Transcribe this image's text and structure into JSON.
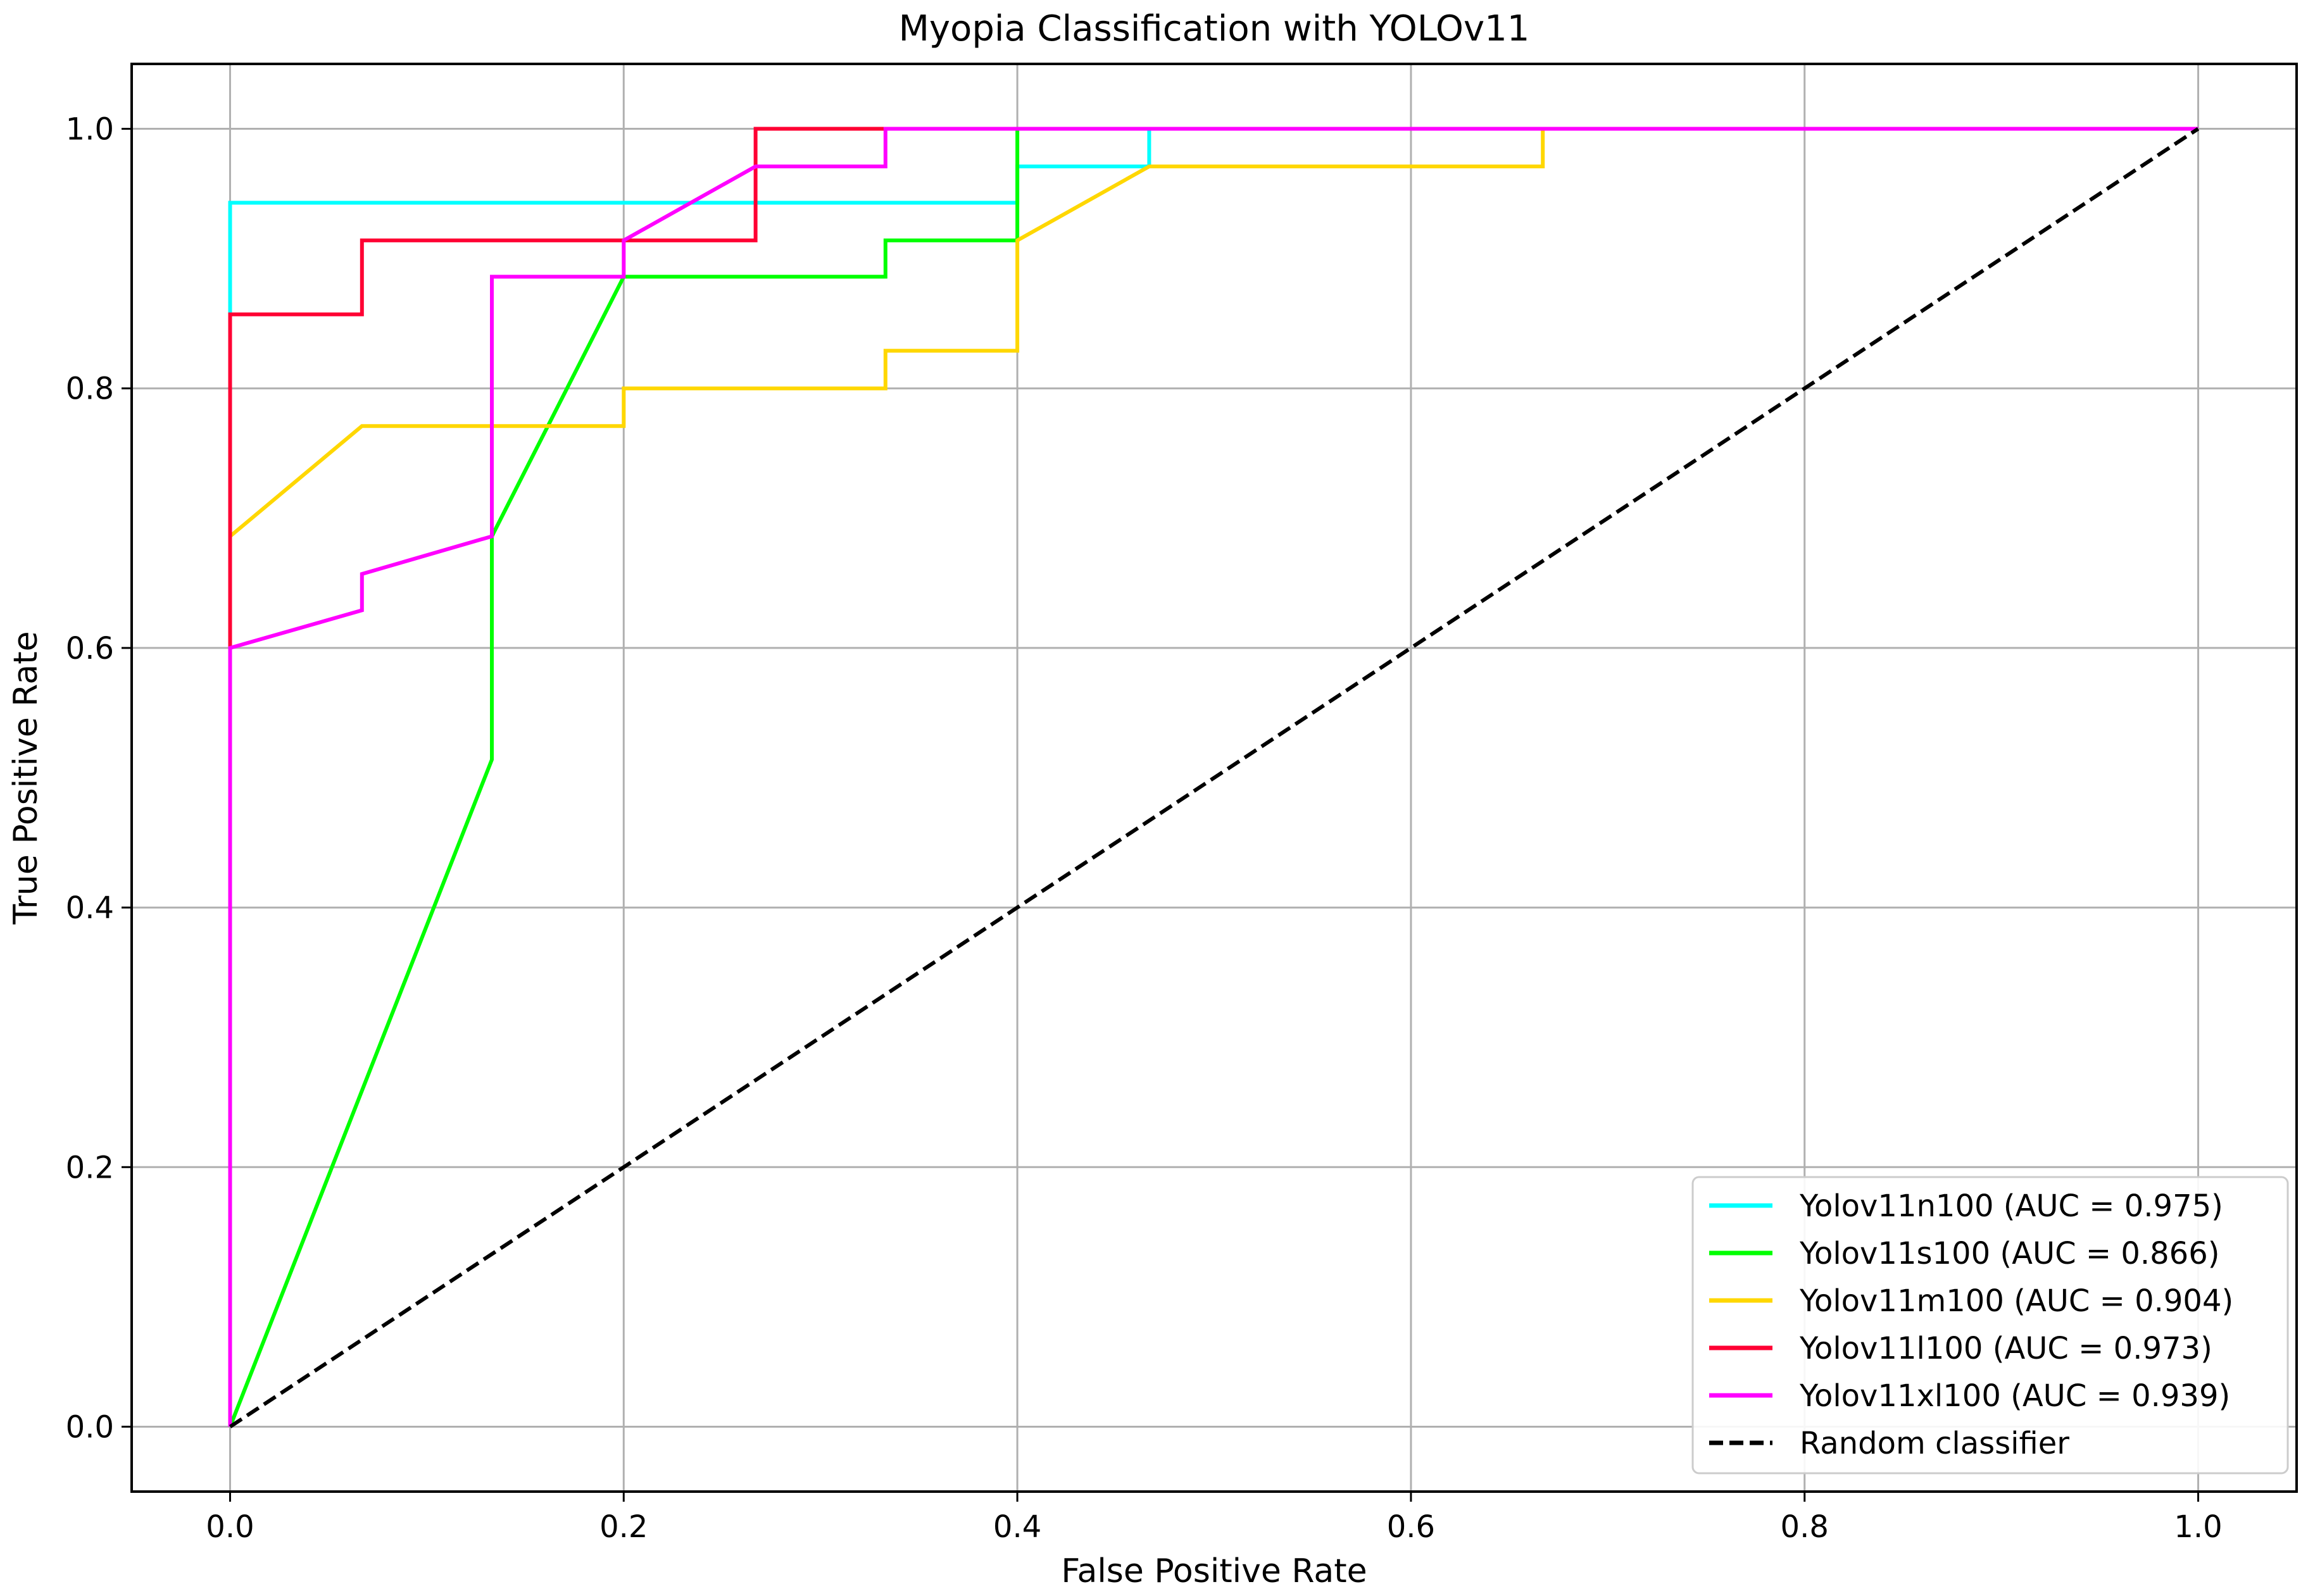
{
  "chart_data": {
    "type": "line",
    "title": "Myopia Classification with YOLOv11",
    "xlabel": "False Positive Rate",
    "ylabel": "True Positive Rate",
    "xlim": [
      -0.05,
      1.05
    ],
    "ylim": [
      -0.05,
      1.05
    ],
    "xticks": [
      0.0,
      0.2,
      0.4,
      0.6,
      0.8,
      1.0
    ],
    "yticks": [
      0.0,
      0.2,
      0.4,
      0.6,
      0.8,
      1.0
    ],
    "xtick_labels": [
      "0.0",
      "0.2",
      "0.4",
      "0.6",
      "0.8",
      "1.0"
    ],
    "ytick_labels": [
      "0.0",
      "0.2",
      "0.4",
      "0.6",
      "0.8",
      "1.0"
    ],
    "grid": true,
    "legend_position": "lower-right",
    "series": [
      {
        "name": "Yolov11n100 (AUC = 0.975)",
        "color": "#00ffff",
        "dashed": false,
        "x": [
          0.0,
          0.0,
          0.4,
          0.4,
          0.467,
          0.467,
          1.0
        ],
        "y": [
          0.0,
          0.943,
          0.943,
          0.971,
          0.971,
          1.0,
          1.0
        ]
      },
      {
        "name": "Yolov11s100 (AUC = 0.866)",
        "color": "#00ff00",
        "dashed": false,
        "x": [
          0.0,
          0.133,
          0.133,
          0.2,
          0.333,
          0.333,
          0.4,
          0.4,
          1.0
        ],
        "y": [
          0.0,
          0.514,
          0.686,
          0.886,
          0.886,
          0.914,
          0.914,
          1.0,
          1.0
        ]
      },
      {
        "name": "Yolov11m100 (AUC = 0.904)",
        "color": "#ffd700",
        "dashed": false,
        "x": [
          0.0,
          0.0,
          0.067,
          0.2,
          0.2,
          0.333,
          0.333,
          0.4,
          0.4,
          0.467,
          0.667,
          0.667,
          1.0
        ],
        "y": [
          0.0,
          0.686,
          0.771,
          0.771,
          0.8,
          0.8,
          0.829,
          0.829,
          0.914,
          0.971,
          0.971,
          1.0,
          1.0
        ]
      },
      {
        "name": "Yolov11l100 (AUC = 0.973)",
        "color": "#ff0033",
        "dashed": false,
        "x": [
          0.0,
          0.0,
          0.067,
          0.067,
          0.267,
          0.267,
          1.0
        ],
        "y": [
          0.0,
          0.857,
          0.857,
          0.914,
          0.914,
          1.0,
          1.0
        ]
      },
      {
        "name": "Yolov11xl100 (AUC = 0.939)",
        "color": "#ff00ff",
        "dashed": false,
        "x": [
          0.0,
          0.0,
          0.067,
          0.067,
          0.133,
          0.133,
          0.2,
          0.2,
          0.267,
          0.333,
          0.333,
          1.0
        ],
        "y": [
          0.0,
          0.6,
          0.629,
          0.657,
          0.686,
          0.886,
          0.886,
          0.914,
          0.971,
          0.971,
          1.0,
          1.0
        ]
      },
      {
        "name": "Random classifier",
        "color": "#000000",
        "dashed": true,
        "x": [
          0.0,
          1.0
        ],
        "y": [
          0.0,
          1.0
        ]
      }
    ]
  }
}
